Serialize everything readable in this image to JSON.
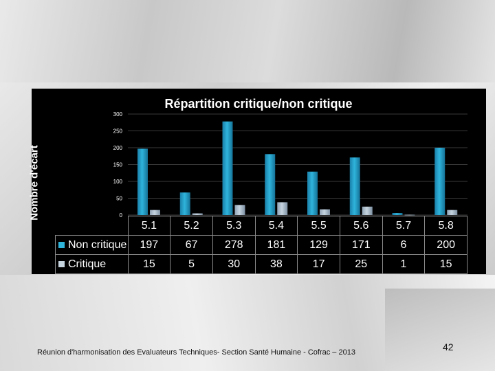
{
  "slide": {
    "footer": "Réunion d'harmonisation des Evaluateurs Techniques- Section Santé Humaine - Cofrac – 2013",
    "page_number": "42"
  },
  "colors": {
    "non_critique": "#2fb4dc",
    "critique": "#c6d4e0",
    "panel_bg": "#000000",
    "grid": "#3a3a3a"
  },
  "chart_data": {
    "type": "bar",
    "title": "Répartition critique/non critique",
    "ylabel": "Nombre d'écart",
    "xlabel": "",
    "ylim": [
      0,
      300
    ],
    "yticks": [
      0,
      50,
      100,
      150,
      200,
      250,
      300
    ],
    "grid": true,
    "legend": "data-table",
    "categories": [
      "5.1",
      "5.2",
      "5.3",
      "5.4",
      "5.5",
      "5.6",
      "5.7",
      "5.8"
    ],
    "series": [
      {
        "name": "Non critique",
        "values": [
          197,
          67,
          278,
          181,
          129,
          171,
          6,
          200
        ]
      },
      {
        "name": "Critique",
        "values": [
          15,
          5,
          30,
          38,
          17,
          25,
          1,
          15
        ]
      }
    ]
  }
}
